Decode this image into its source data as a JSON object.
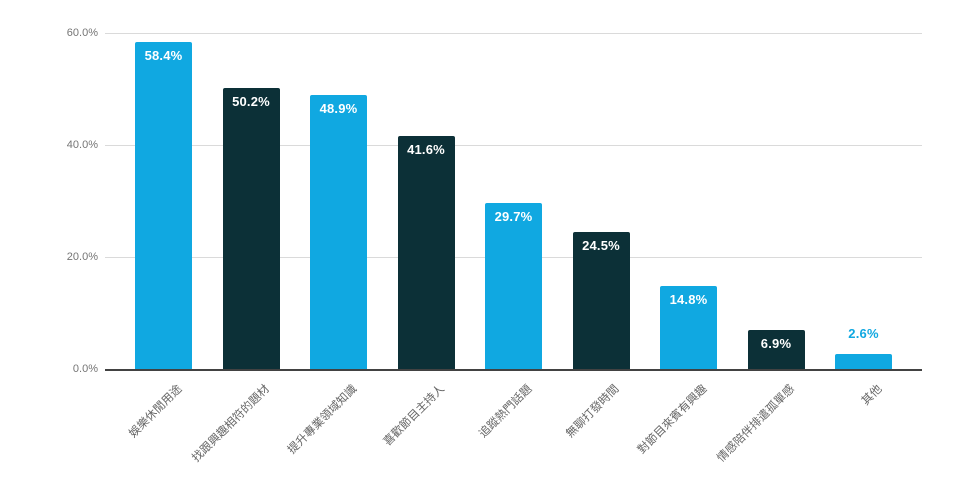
{
  "chart_data": {
    "type": "bar",
    "title": "",
    "xlabel": "",
    "ylabel": "",
    "categories": [
      "娛樂休閒用途",
      "找跟興趣相符的題材",
      "提升專業領域知識",
      "喜歡節目主持人",
      "追蹤熱門話題",
      "無聊打發時間",
      "對節目來賓有興趣",
      "情感陪伴排遣孤單感",
      "其他"
    ],
    "values": [
      58.4,
      50.2,
      48.9,
      41.6,
      29.7,
      24.5,
      14.8,
      6.9,
      2.6
    ],
    "value_labels": [
      "58.4%",
      "50.2%",
      "48.9%",
      "41.6%",
      "29.7%",
      "24.5%",
      "14.8%",
      "6.9%",
      "2.6%"
    ],
    "value_label_placement": [
      "inside",
      "inside",
      "inside",
      "inside",
      "inside",
      "inside",
      "inside",
      "inside",
      "above"
    ],
    "bar_colors": [
      "#10A8E1",
      "#0C3037",
      "#10A8E1",
      "#0C3037",
      "#10A8E1",
      "#0C3037",
      "#10A8E1",
      "#0C3037",
      "#10A8E1"
    ],
    "y_ticks": [
      "0.0%",
      "20.0%",
      "40.0%",
      "60.0%"
    ],
    "y_tick_values": [
      0,
      20,
      40,
      60
    ],
    "ylim": [
      0,
      60
    ],
    "grid": true,
    "legend_position": "none"
  },
  "colors": {
    "light_blue": "#10A8E1",
    "dark_teal": "#0C3037",
    "grid_line": "#DADADA",
    "axis_line": "#424242",
    "tick_text": "#757575",
    "category_text": "#666666",
    "value_text_on_bar": "#FFFFFF",
    "background": "#FFFFFF"
  }
}
